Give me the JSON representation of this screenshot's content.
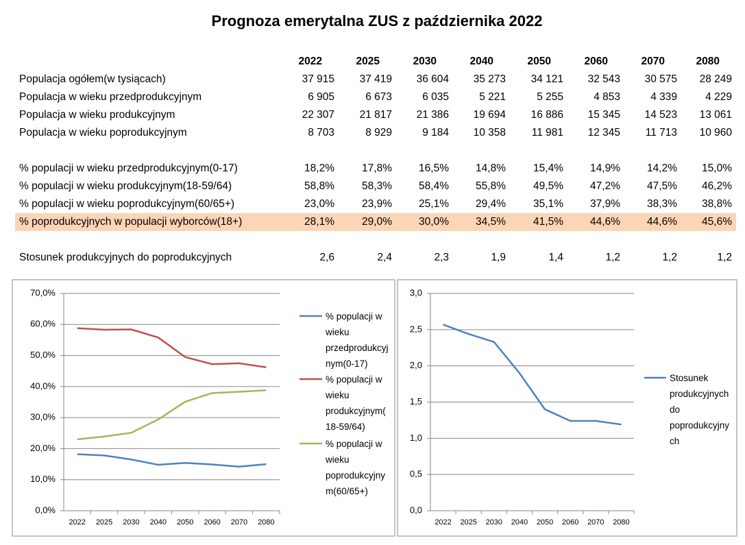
{
  "title": "Prognoza emerytalna ZUS z października 2022",
  "table": {
    "columns": [
      "2022",
      "2025",
      "2030",
      "2040",
      "2050",
      "2060",
      "2070",
      "2080"
    ],
    "sections": [
      [
        {
          "label": "Populacja ogółem(w tysiącach)",
          "values": [
            "37 915",
            "37 419",
            "36 604",
            "35 273",
            "34 121",
            "32 543",
            "30 575",
            "28 249"
          ]
        },
        {
          "label": "Populacja w wieku przedprodukcyjnym",
          "values": [
            "6 905",
            "6 673",
            "6 035",
            "5 221",
            "5 255",
            "4 853",
            "4 339",
            "4 229"
          ]
        },
        {
          "label": "Populacja w wieku produkcyjnym",
          "values": [
            "22 307",
            "21 817",
            "21 386",
            "19 694",
            "16 886",
            "15 345",
            "14 523",
            "13 061"
          ]
        },
        {
          "label": "Populacja w wieku poprodukcyjnym",
          "values": [
            "8 703",
            "8 929",
            "9 184",
            "10 358",
            "11 981",
            "12 345",
            "11 713",
            "10 960"
          ]
        }
      ],
      [
        {
          "label": "% populacji w wieku przedprodukcyjnym(0-17)",
          "values": [
            "18,2%",
            "17,8%",
            "16,5%",
            "14,8%",
            "15,4%",
            "14,9%",
            "14,2%",
            "15,0%"
          ]
        },
        {
          "label": "% populacji w wieku produkcyjnym(18-59/64)",
          "values": [
            "58,8%",
            "58,3%",
            "58,4%",
            "55,8%",
            "49,5%",
            "47,2%",
            "47,5%",
            "46,2%"
          ]
        },
        {
          "label": "% populacji w wieku poprodukcyjnym(60/65+)",
          "values": [
            "23,0%",
            "23,9%",
            "25,1%",
            "29,4%",
            "35,1%",
            "37,9%",
            "38,3%",
            "38,8%"
          ]
        },
        {
          "label": "% poprodukcyjnych w populacji wyborców(18+)",
          "values": [
            "28,1%",
            "29,0%",
            "30,0%",
            "34,5%",
            "41,5%",
            "44,6%",
            "44,6%",
            "45,6%"
          ],
          "highlighted": true
        }
      ],
      [
        {
          "label": "Stosunek produkcyjnych do poprodukcyjnych",
          "values": [
            "2,6",
            "2,4",
            "2,3",
            "1,9",
            "1,4",
            "1,2",
            "1,2",
            "1,2"
          ]
        }
      ]
    ]
  },
  "chart_data": [
    {
      "type": "line",
      "categories": [
        "2022",
        "2025",
        "2030",
        "2040",
        "2050",
        "2060",
        "2070",
        "2080"
      ],
      "series": [
        {
          "name": "% populacji w wieku przedprodukcyjnym(0-17)",
          "color": "#4f81bd",
          "values": [
            18.2,
            17.8,
            16.5,
            14.8,
            15.4,
            14.9,
            14.2,
            15.0
          ]
        },
        {
          "name": "% populacji w wieku produkcyjnym(18-59/64)",
          "color": "#c0504d",
          "values": [
            58.8,
            58.3,
            58.4,
            55.8,
            49.5,
            47.2,
            47.5,
            46.2
          ]
        },
        {
          "name": "% populacji w wieku poprodukcyjnym(60/65+)",
          "color": "#9bbb59",
          "values": [
            23.0,
            23.9,
            25.1,
            29.4,
            35.1,
            37.9,
            38.3,
            38.8
          ]
        }
      ],
      "ylim": [
        0,
        70
      ],
      "yticks": [
        {
          "value": 0,
          "label": "0,0%"
        },
        {
          "value": 10,
          "label": "10,0%"
        },
        {
          "value": 20,
          "label": "20,0%"
        },
        {
          "value": 30,
          "label": "30,0%"
        },
        {
          "value": 40,
          "label": "40,0%"
        },
        {
          "value": 50,
          "label": "50,0%"
        },
        {
          "value": 60,
          "label": "60,0%"
        },
        {
          "value": 70,
          "label": "70,0%"
        }
      ],
      "grid": true,
      "legend": "right"
    },
    {
      "type": "line",
      "categories": [
        "2022",
        "2025",
        "2030",
        "2040",
        "2050",
        "2060",
        "2070",
        "2080"
      ],
      "series": [
        {
          "name": "Stosunek produkcyjnych do poprodukcyjnych",
          "color": "#4f81bd",
          "values": [
            2.57,
            2.44,
            2.33,
            1.9,
            1.4,
            1.24,
            1.24,
            1.19
          ]
        }
      ],
      "ylim": [
        0,
        3
      ],
      "yticks": [
        {
          "value": 0,
          "label": "0,0"
        },
        {
          "value": 0.5,
          "label": "0,5"
        },
        {
          "value": 1,
          "label": "1,0"
        },
        {
          "value": 1.5,
          "label": "1,5"
        },
        {
          "value": 2,
          "label": "2,0"
        },
        {
          "value": 2.5,
          "label": "2,5"
        },
        {
          "value": 3,
          "label": "3,0"
        }
      ],
      "grid": true,
      "legend": "right"
    }
  ]
}
